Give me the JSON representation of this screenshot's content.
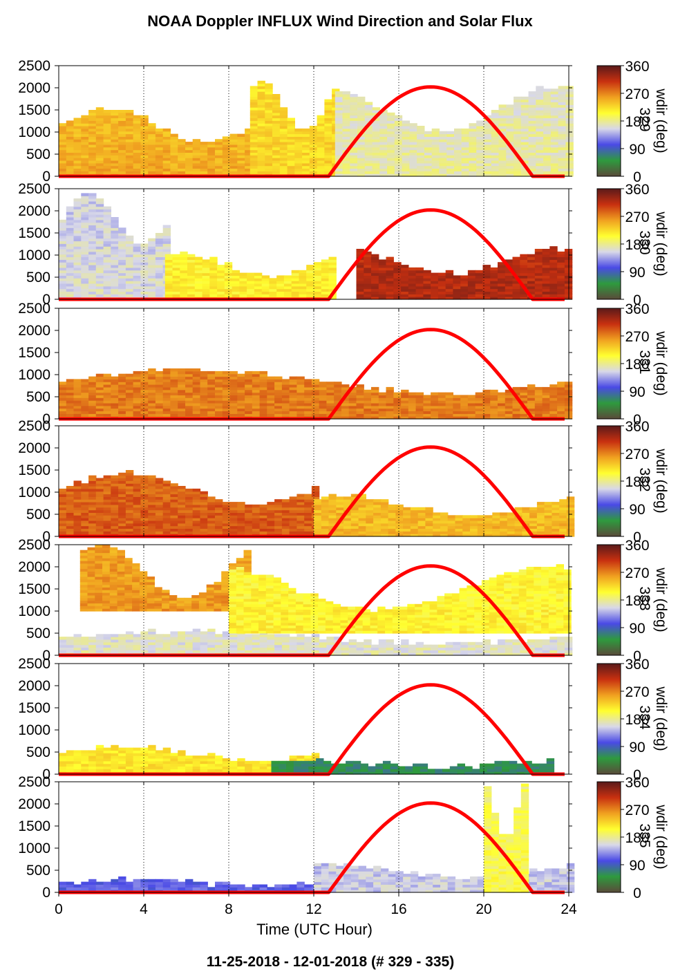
{
  "title": "NOAA Doppler INFLUX Wind Direction and Solar Flux",
  "footer": "11-25-2018 - 12-01-2018   (# 329 - 335)",
  "chart_data": {
    "type": "heatmap",
    "xlabel": "Time (UTC Hour)",
    "xlim": [
      0,
      24
    ],
    "xticks": [
      "0",
      "4",
      "8",
      "12",
      "16",
      "20",
      "24"
    ],
    "ylim": [
      0,
      2500
    ],
    "yticks": [
      "0",
      "500",
      "1000",
      "1500",
      "2000",
      "2500"
    ],
    "colorbar": {
      "label": "wdir (deg)",
      "range": [
        0,
        360
      ],
      "ticks": [
        "0",
        "90",
        "180",
        "270",
        "360"
      ],
      "stops": [
        "#5a4a3a",
        "#2e9a3e",
        "#4a4ae6",
        "#d8d8e8",
        "#ffff30",
        "#f0a020",
        "#c83010",
        "#5a1a1a"
      ]
    },
    "solar_flux": {
      "color": "#ff0000",
      "rise_hour": 12.7,
      "set_hour": 22.3,
      "peak_height": 2020
    },
    "panels": [
      {
        "day": "329",
        "overlap_day_label": "329",
        "summary": [
          {
            "t0": 0,
            "t1": 9,
            "h0": 0,
            "h1": 1500,
            "wdir": 250
          },
          {
            "t0": 9,
            "t1": 13,
            "h0": 0,
            "h1": 2100,
            "wdir": 230
          },
          {
            "t0": 13,
            "t1": 24,
            "h0": 0,
            "h1": 2000,
            "wdir": 175
          }
        ]
      },
      {
        "day": "330",
        "overlap_day_label": "330",
        "summary": [
          {
            "t0": 0,
            "t1": 5,
            "h0": 0,
            "h1": 2400,
            "wdir": 160
          },
          {
            "t0": 5,
            "t1": 13,
            "h0": 0,
            "h1": 1000,
            "wdir": 215
          },
          {
            "t0": 14,
            "t1": 24,
            "h0": 0,
            "h1": 1100,
            "wdir": 320
          }
        ]
      },
      {
        "day": "331",
        "overlap_day_label": "331",
        "summary": [
          {
            "t0": 0,
            "t1": 24,
            "h0": 0,
            "h1": 1100,
            "wdir": 275
          }
        ]
      },
      {
        "day": "332",
        "overlap_day_label": "332",
        "summary": [
          {
            "t0": 0,
            "t1": 12,
            "h0": 0,
            "h1": 1400,
            "wdir": 290
          },
          {
            "t0": 12,
            "t1": 24,
            "h0": 0,
            "h1": 900,
            "wdir": 245
          }
        ]
      },
      {
        "day": "333",
        "overlap_day_label": "333",
        "summary": [
          {
            "t0": 0,
            "t1": 24,
            "h0": 0,
            "h1": 500,
            "wdir": 165
          },
          {
            "t0": 1,
            "t1": 9,
            "h0": 1000,
            "h1": 2500,
            "wdir": 265
          },
          {
            "t0": 8,
            "t1": 24,
            "h0": 500,
            "h1": 2000,
            "wdir": 215
          }
        ]
      },
      {
        "day": "334",
        "overlap_day_label": "334",
        "summary": [
          {
            "t0": 0,
            "t1": 12,
            "h0": 0,
            "h1": 600,
            "wdir": 220
          },
          {
            "t0": 10,
            "t1": 23,
            "h0": 0,
            "h1": 300,
            "wdir": 60
          }
        ]
      },
      {
        "day": "335",
        "overlap_day_label": "335",
        "summary": [
          {
            "t0": 0,
            "t1": 12,
            "h0": 0,
            "h1": 250,
            "wdir": 110
          },
          {
            "t0": 12,
            "t1": 24,
            "h0": 0,
            "h1": 600,
            "wdir": 150
          },
          {
            "t0": 20,
            "t1": 22,
            "h0": 0,
            "h1": 2400,
            "wdir": 200
          }
        ]
      }
    ]
  }
}
